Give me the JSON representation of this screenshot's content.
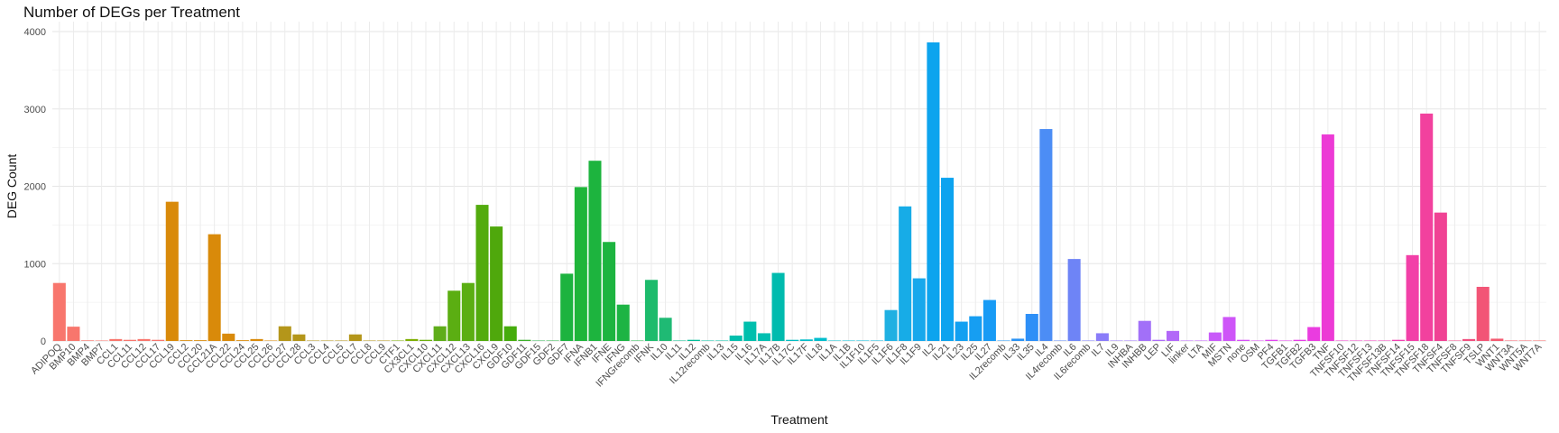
{
  "chart_data": {
    "type": "bar",
    "title": "Number of DEGs per Treatment",
    "xlabel": "Treatment",
    "ylabel": "DEG Count",
    "ylim": [
      0,
      4000
    ],
    "y_ticks": [
      0,
      1000,
      2000,
      3000,
      4000
    ],
    "grid": true,
    "legend": "none",
    "categories": [
      "ADIPOQ",
      "BMP10",
      "BMP4",
      "BMP7",
      "CCL1",
      "CCL11",
      "CCL12",
      "CCL17",
      "CCL19",
      "CCL2",
      "CCL20",
      "CCL21A",
      "CCL22",
      "CCL24",
      "CCL25",
      "CCL26",
      "CCL27",
      "CCL28",
      "CCL3",
      "CCL4",
      "CCL5",
      "CCL7",
      "CCL8",
      "CCL9",
      "CTF1",
      "CX3CL1",
      "CXCL10",
      "CXCL11",
      "CXCL12",
      "CXCL13",
      "CXCL16",
      "CXCL9",
      "GDF10",
      "GDF11",
      "GDF15",
      "GDF2",
      "GDF7",
      "IFNA",
      "IFNB1",
      "IFNE",
      "IFNG",
      "IFNGrecomb",
      "IFNK",
      "IL10",
      "IL11",
      "IL12",
      "IL12recomb",
      "IL13",
      "IL15",
      "IL16",
      "IL17A",
      "IL17B",
      "IL17C",
      "IL17F",
      "IL18",
      "IL1A",
      "IL1B",
      "IL1F10",
      "IL1F5",
      "IL1F6",
      "IL1F8",
      "IL1F9",
      "IL2",
      "IL21",
      "IL23",
      "IL25",
      "IL27",
      "IL2recomb",
      "IL33",
      "IL35",
      "IL4",
      "IL4recomb",
      "IL6",
      "IL6recomb",
      "IL7",
      "IL9",
      "INHBA",
      "INHBB",
      "LEP",
      "LIF",
      "linker",
      "LTA",
      "MIF",
      "MSTN",
      "none",
      "OSM",
      "PF4",
      "TGFB1",
      "TGFB2",
      "TGFB3",
      "TNF",
      "TNFSF10",
      "TNFSF12",
      "TNFSF13",
      "TNFSF13B",
      "TNFSF14",
      "TNFSF15",
      "TNFSF18",
      "TNFSF4",
      "TNFSF8",
      "TNFSF9",
      "TSLP",
      "WNT1",
      "WNT3A",
      "WNT5A",
      "WNT7A"
    ],
    "values": [
      750,
      185,
      8,
      5,
      25,
      15,
      25,
      15,
      1800,
      10,
      10,
      1380,
      95,
      10,
      25,
      5,
      190,
      85,
      5,
      5,
      5,
      85,
      5,
      5,
      5,
      25,
      15,
      190,
      650,
      750,
      1760,
      1480,
      190,
      15,
      5,
      5,
      870,
      1990,
      2330,
      1280,
      470,
      5,
      790,
      300,
      5,
      15,
      5,
      5,
      70,
      250,
      100,
      880,
      15,
      20,
      40,
      5,
      5,
      5,
      5,
      400,
      1740,
      810,
      3860,
      2110,
      250,
      320,
      530,
      5,
      30,
      350,
      2740,
      5,
      1060,
      5,
      100,
      5,
      5,
      260,
      15,
      130,
      5,
      5,
      110,
      310,
      15,
      5,
      15,
      5,
      15,
      180,
      2670,
      5,
      5,
      5,
      5,
      15,
      1110,
      2940,
      1660,
      5,
      25,
      700,
      30,
      5,
      5,
      5
    ],
    "colors": [
      "#F8766D",
      "#F8766D",
      "#F8766D",
      "#F8766D",
      "#F8766D",
      "#F8766D",
      "#F8766D",
      "#F8766D",
      "#D98A0A",
      "#D98A0A",
      "#D98A0A",
      "#D98A0A",
      "#D98A0A",
      "#D98A0A",
      "#D98A0A",
      "#D98A0A",
      "#B4961A",
      "#B4961A",
      "#B4961A",
      "#B4961A",
      "#B4961A",
      "#B4961A",
      "#B4961A",
      "#B4961A",
      "#7DAE00",
      "#7DAE00",
      "#6BAE0C",
      "#5FAD1A",
      "#5BAE12",
      "#5BAE12",
      "#53AB0E",
      "#4FA80C",
      "#45AC0C",
      "#3CB12A",
      "#2FB350",
      "#28B445",
      "#1DB33F",
      "#1FB53A",
      "#1DB43E",
      "#1DB440",
      "#1DB444",
      "#1DB848",
      "#1DBB6C",
      "#1FBA74",
      "#00BA8A",
      "#00BD98",
      "#00BFA2",
      "#00BFA6",
      "#00BFAD",
      "#00BFAD",
      "#00BFB1",
      "#00BBAE",
      "#00BCC3",
      "#00BCC8",
      "#00BDCC",
      "#00BDCE",
      "#00BDD4",
      "#00B8D8",
      "#00B4DC",
      "#1FB0E2",
      "#17ACE7",
      "#17A8EC",
      "#0DA4EE",
      "#0DA3EF",
      "#12A0F1",
      "#169EF2",
      "#189BF5",
      "#2196F3",
      "#2A93F5",
      "#2D8FF7",
      "#4C8DF5",
      "#5C89F3",
      "#6E84F6",
      "#7C7EF8",
      "#8A7CF9",
      "#9779F8",
      "#9E74F8",
      "#A270F8",
      "#AC6CF9",
      "#B268F8",
      "#B964F8",
      "#C15EF9",
      "#C85AF9",
      "#CE55F8",
      "#D54FF6",
      "#DA4BF3",
      "#E042EE",
      "#E33EEB",
      "#E73CE6",
      "#EA3CE0",
      "#EC3AD5",
      "#EE3AC9",
      "#EE3DC3",
      "#F03DBE",
      "#F23EB8",
      "#F23FB2",
      "#F240A8",
      "#F2419E",
      "#F04294",
      "#F14A8A",
      "#F1507F",
      "#F25576",
      "#F45A70",
      "#F45E6B",
      "#F46268",
      "#F46664"
    ]
  }
}
